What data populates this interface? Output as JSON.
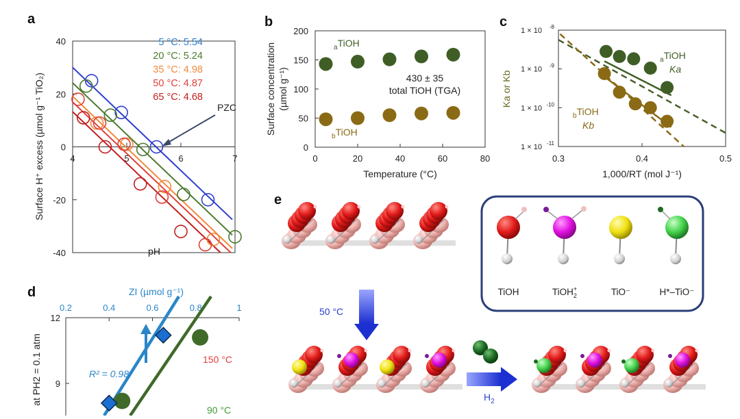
{
  "colors": {
    "blue": "#2f3fcf",
    "green": "#4a7a2e",
    "orange": "#f08a3c",
    "red": "#e0403a",
    "darkred": "#c21e1e",
    "dkgreen": "#3f5e26",
    "olive": "#8a6a14",
    "zi_blue": "#2a86c8",
    "arrow": "#2b3fd6",
    "pzc": "#3c4a68"
  },
  "panel_a": {
    "label": "a",
    "y_axis_label": "Surface H⁺ excess (µmol g⁻¹ TiO₂)",
    "x_axis_label": "pH",
    "pzc_label": "PZC",
    "legend": [
      "5 °C: 5.54",
      "20 °C: 5.24",
      "35 °C: 4.98",
      "50 °C: 4.87",
      "65 °C: 4.68"
    ],
    "chart_data": {
      "type": "scatter",
      "xlim": [
        4,
        7
      ],
      "ylim": [
        -40,
        40
      ],
      "x_ticks": [
        "4",
        "5",
        "6",
        "7"
      ],
      "y_ticks": [
        "40",
        "20",
        "0",
        "-20",
        "-40"
      ],
      "series": [
        {
          "name": "5 °C",
          "pzc": 5.54,
          "x": [
            4.35,
            4.9,
            5.55,
            6.5
          ],
          "y": [
            25,
            13,
            0,
            -20
          ]
        },
        {
          "name": "20 °C",
          "pzc": 5.24,
          "x": [
            4.25,
            4.7,
            5.3,
            6.05,
            7.0
          ],
          "y": [
            23,
            12,
            -1,
            -18,
            -34
          ]
        },
        {
          "name": "35 °C",
          "pzc": 4.98,
          "x": [
            4.45,
            5.0,
            5.7,
            6.6
          ],
          "y": [
            9,
            1,
            -15,
            -35
          ]
        },
        {
          "name": "50 °C",
          "pzc": 4.87,
          "x": [
            4.1,
            4.5,
            4.95,
            5.65,
            6.45
          ],
          "y": [
            18,
            9,
            1,
            -19,
            -37
          ]
        },
        {
          "name": "65 °C",
          "pzc": 4.68,
          "x": [
            4.2,
            4.6,
            5.25,
            6.0
          ],
          "y": [
            11,
            0,
            -14,
            -32
          ]
        }
      ]
    }
  },
  "panel_b": {
    "label": "b",
    "y_axis_label_1": "Surface concentration",
    "y_axis_label_2": "(µmol g⁻¹)",
    "x_axis_label": "Temperature (°C)",
    "annotation_1": "430 ± 35",
    "annotation_2": "total TiOH (TGA)",
    "label_a_sub": "a",
    "label_a_main": "TiOH",
    "label_b_sub": "b",
    "label_b_main": "TiOH",
    "chart_data": {
      "type": "scatter",
      "xlim": [
        0,
        80
      ],
      "ylim": [
        0,
        200
      ],
      "x_ticks": [
        "0",
        "20",
        "40",
        "60",
        "80"
      ],
      "y_ticks": [
        "0",
        "50",
        "100",
        "150",
        "200"
      ],
      "series": [
        {
          "name": "aTiOH",
          "x": [
            5,
            20,
            35,
            50,
            65
          ],
          "y": [
            143,
            147,
            151,
            156,
            159
          ]
        },
        {
          "name": "bTiOH",
          "x": [
            5,
            20,
            35,
            50,
            65
          ],
          "y": [
            48,
            50,
            55,
            58,
            59
          ]
        }
      ]
    }
  },
  "panel_c": {
    "label": "c",
    "y_axis_label": "Ka or Kb",
    "x_axis_label": "1,000/RT (mol J⁻¹)",
    "label_a_sub": "a",
    "label_a_main": "TiOH",
    "label_a_k": "Ka",
    "label_b_sub": "b",
    "label_b_main": "TiOH",
    "label_b_k": "Kb",
    "y_tick_base": "1 × 10",
    "chart_data": {
      "type": "scatter",
      "xlim": [
        0.3,
        0.5
      ],
      "ylim_log10": [
        -11,
        -8
      ],
      "x_ticks": [
        "0.3",
        "0.4",
        "0.5"
      ],
      "y_tick_exponents": [
        "-8",
        "-9",
        "-10",
        "-11"
      ],
      "series": [
        {
          "name": "aTiOH Ka",
          "x": [
            0.357,
            0.373,
            0.39,
            0.41,
            0.43
          ],
          "log10_y": [
            -8.55,
            -8.68,
            -8.74,
            -8.98,
            -9.48
          ]
        },
        {
          "name": "bTiOH Kb",
          "x": [
            0.355,
            0.373,
            0.392,
            0.41,
            0.43
          ],
          "log10_y": [
            -9.12,
            -9.6,
            -9.9,
            -10.0,
            -10.35
          ]
        }
      ]
    }
  },
  "panel_d": {
    "label": "d",
    "top_axis_label": "ZI (µmol g⁻¹)",
    "y_axis_label": "at PH2 = 0.1 atm",
    "r2_label": "R² = 0.98",
    "label_150": "150 °C",
    "label_90": "90 °C",
    "chart_data": {
      "type": "scatter",
      "zi_ticks": [
        "0.2",
        "0.4",
        "0.6",
        "0.8",
        "1"
      ],
      "y_ticks": [
        "12",
        "9"
      ],
      "series": [
        {
          "name": "150 °C",
          "x": [
            0.82
          ],
          "y": [
            11.1
          ]
        },
        {
          "name": "90 °C",
          "x": [
            0.46
          ],
          "y": [
            8.2
          ]
        },
        {
          "name": "ZI",
          "x": [
            0.4,
            0.65
          ],
          "y": [
            8.1,
            11.2
          ]
        }
      ]
    }
  },
  "panel_e": {
    "label": "e",
    "temp_label": "50 °C",
    "h2_label": "H",
    "h2_sub": "2",
    "legend": [
      {
        "name": "TiOH",
        "color": "#e21a1a"
      },
      {
        "name": "TiOH2+",
        "main": "TiOH",
        "sup": "+",
        "sub": "2",
        "color": "#e010e0"
      },
      {
        "name": "TiO⁻",
        "color": "#f0e010"
      },
      {
        "name": "H*–TiO⁻",
        "color": "#43d24a"
      }
    ]
  }
}
